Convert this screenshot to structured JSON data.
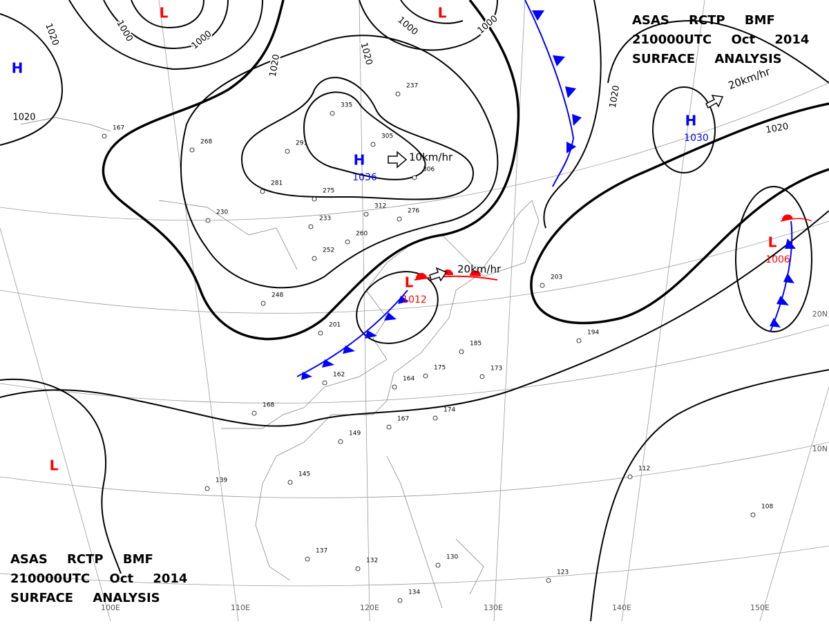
{
  "header": {
    "lines": [
      "ASAS RCTP BMF",
      "210000UTC Oct 2014",
      "SURFACE ANALYSIS"
    ]
  },
  "centers": [
    {
      "letter": "L",
      "color": "#ff0000"
    },
    {
      "letter": "H",
      "color": "#0000ff"
    },
    {
      "letter": "L",
      "color": "#ff0000"
    },
    {
      "letter": "H",
      "color": "#0000ff",
      "pressure": "1036"
    },
    {
      "letter": "L",
      "color": "#ff0000",
      "pressure": "1012"
    },
    {
      "letter": "H",
      "color": "#0000ff",
      "pressure": "1030"
    },
    {
      "letter": "L",
      "color": "#ff0000",
      "pressure": "1006"
    },
    {
      "letter": "L",
      "color": "#ff0000"
    }
  ],
  "isobar_labels": [
    "1020",
    "1000",
    "1000",
    "1020",
    "1020",
    "1000",
    "1000",
    "1020",
    "1020",
    "1020"
  ],
  "motions": [
    "10km/hr",
    "20km/hr",
    "20km/hr"
  ],
  "longitudes": [
    "100E",
    "110E",
    "120E",
    "130E",
    "140E",
    "150E"
  ],
  "latitudes": [
    "20N",
    "10N"
  ],
  "stations": [
    "312",
    "305",
    "306",
    "276",
    "260",
    "252",
    "233",
    "275",
    "281",
    "291",
    "335",
    "237",
    "230",
    "268",
    "167",
    "248",
    "201",
    "162",
    "164",
    "175",
    "185",
    "173",
    "168",
    "149",
    "145",
    "139",
    "137",
    "132",
    "130",
    "134",
    "123",
    "112",
    "108",
    "194",
    "203",
    "174",
    "167"
  ]
}
